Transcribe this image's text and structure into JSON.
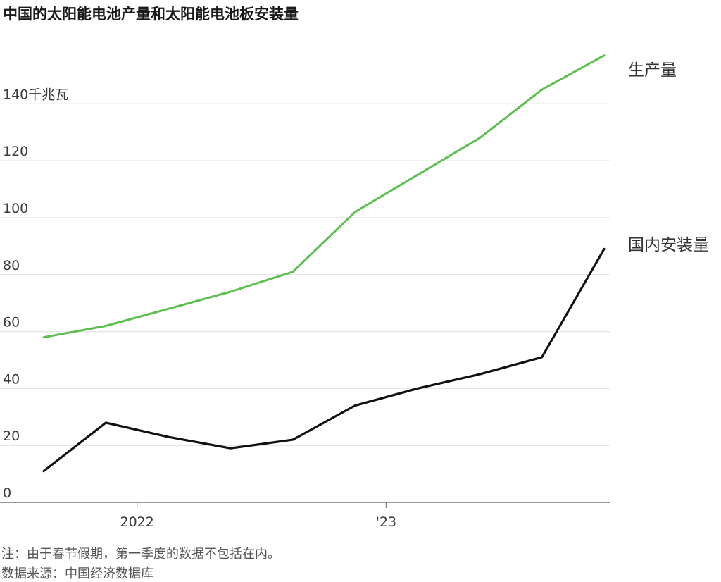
{
  "chart_data": {
    "type": "line",
    "title": "中国的太阳能电池产量和太阳能电池板安装量",
    "ylabel": "千兆瓦",
    "ylim": [
      0,
      160
    ],
    "yticks": [
      0,
      20,
      40,
      60,
      80,
      100,
      120,
      140
    ],
    "x": [
      "2021-Q4",
      "2022-Q1",
      "2022-Q2",
      "2022-Q3",
      "2022-Q4",
      "2023-Q1",
      "2023-Q2",
      "2023-Q3",
      "2023-Q4",
      "2024-Q1"
    ],
    "xtick_labels": [
      {
        "at": "2022-Q1",
        "label": "2022"
      },
      {
        "at": "2023-Q1",
        "label": "'23"
      }
    ],
    "series": [
      {
        "name": "生产量",
        "color": "#5cbf4f",
        "values": [
          58,
          62,
          68,
          74,
          81,
          102,
          115,
          128,
          145,
          157
        ]
      },
      {
        "name": "国内安装量",
        "color": "#111111",
        "values": [
          11,
          28,
          23,
          19,
          22,
          34,
          40,
          45,
          51,
          89
        ]
      }
    ],
    "grid": true
  },
  "notes": {
    "footnote": "注：由于春节假期，第一季度的数据不包括在内。",
    "source": "数据来源：中国经济数据库"
  }
}
